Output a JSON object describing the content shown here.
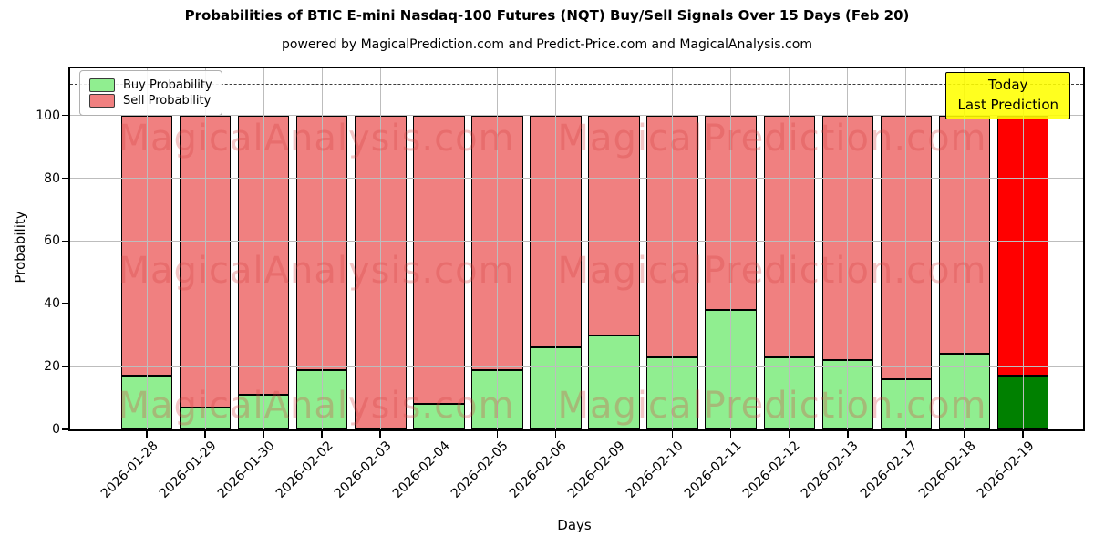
{
  "title": "Probabilities of BTIC E-mini Nasdaq-100 Futures (NQT) Buy/Sell Signals Over 15 Days (Feb 20)",
  "subtitle": "powered by MagicalPrediction.com and Predict-Price.com and MagicalAnalysis.com",
  "watermarks": {
    "left": "MagicalAnalysis.com",
    "right": "MagicalPrediction.com"
  },
  "annotation_box": {
    "line1": "Today",
    "line2": "Last Prediction",
    "bg_color": "#ffff00"
  },
  "chart_data": {
    "type": "bar",
    "stacked": true,
    "title": "Probabilities of BTIC E-mini Nasdaq-100 Futures (NQT) Buy/Sell Signals Over 15 Days (Feb 20)",
    "xlabel": "Days",
    "ylabel": "Probability",
    "categories": [
      "2026-01-28",
      "2026-01-29",
      "2026-01-30",
      "2026-02-02",
      "2026-02-03",
      "2026-02-04",
      "2026-02-05",
      "2026-02-06",
      "2026-02-09",
      "2026-02-10",
      "2026-02-11",
      "2026-02-12",
      "2026-02-13",
      "2026-02-17",
      "2026-02-18",
      "2026-02-19"
    ],
    "series": [
      {
        "name": "Buy Probability",
        "color": "#90ee90",
        "values": [
          17,
          7,
          11,
          19,
          0,
          8,
          19,
          26,
          30,
          23,
          38,
          23,
          22,
          16,
          24,
          17
        ]
      },
      {
        "name": "Sell Probability",
        "color": "#f08080",
        "values": [
          83,
          93,
          89,
          81,
          100,
          92,
          81,
          74,
          70,
          77,
          62,
          77,
          78,
          84,
          76,
          83
        ]
      }
    ],
    "today_bar": {
      "index": 15,
      "buy_color": "#008000",
      "sell_color": "#ff0000"
    },
    "bar_edge_color": "#000000",
    "yticks": [
      0,
      20,
      40,
      60,
      80,
      100
    ],
    "ylim": [
      0,
      115
    ],
    "dashed_line_y": 110,
    "grid": true,
    "legend_position": "upper left"
  }
}
